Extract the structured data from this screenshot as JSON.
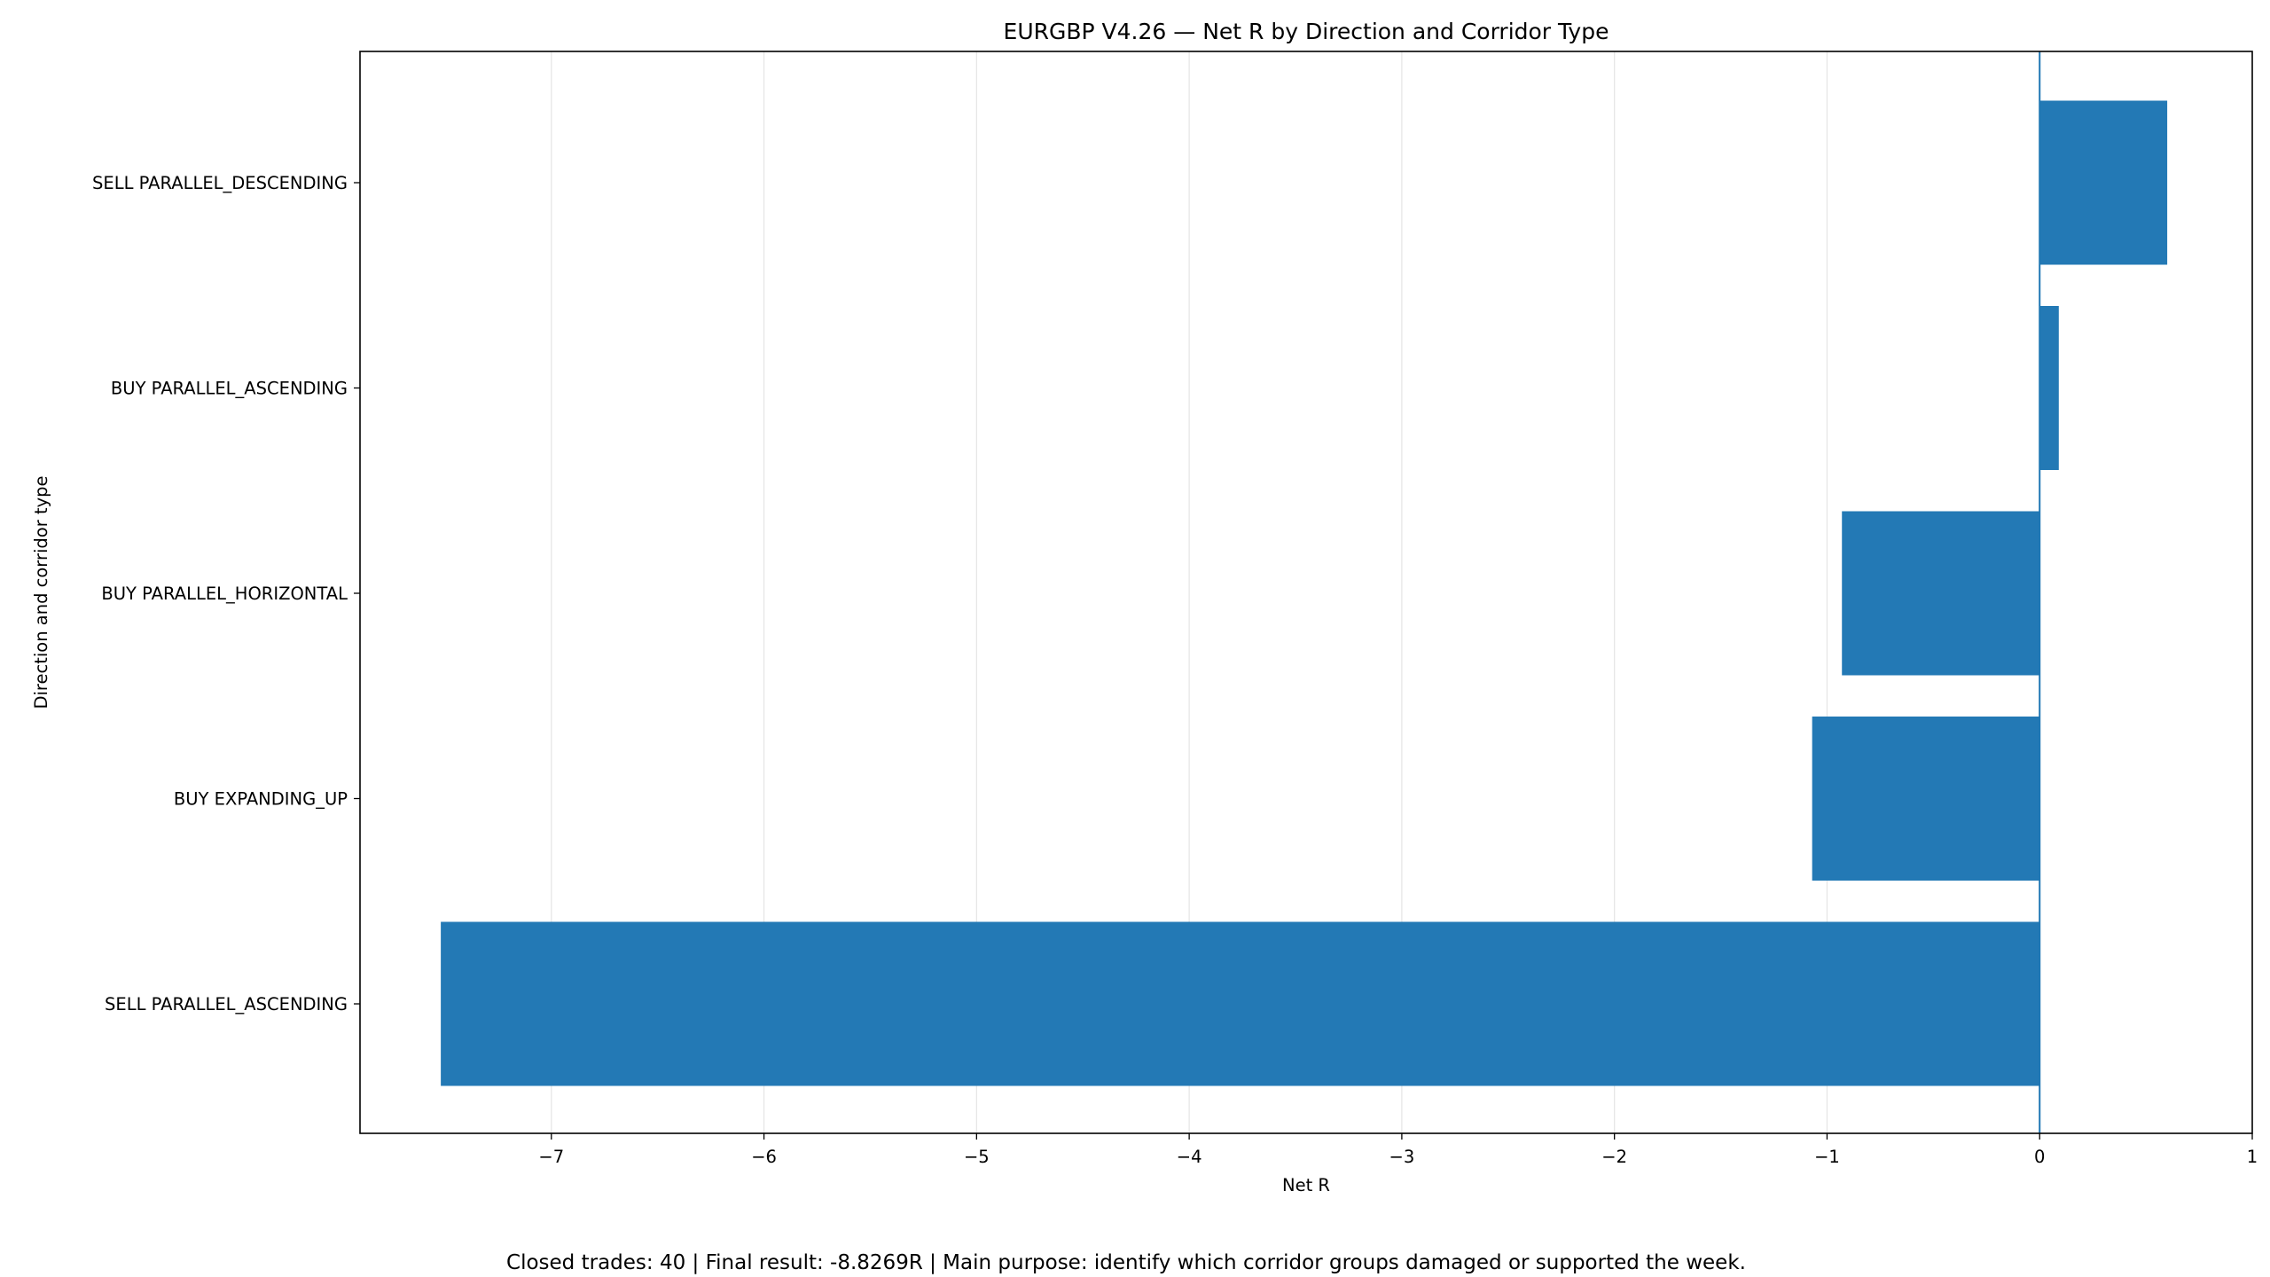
{
  "chart_data": {
    "type": "bar",
    "orientation": "horizontal",
    "title": "EURGBP V4.26 — Net R by Direction and Corridor Type",
    "xlabel": "Net R",
    "ylabel": "Direction and corridor type",
    "categories": [
      "SELL PARALLEL_DESCENDING",
      "BUY PARALLEL_ASCENDING",
      "BUY PARALLEL_HORIZONTAL",
      "BUY EXPANDING_UP",
      "SELL PARALLEL_ASCENDING"
    ],
    "values": [
      0.6,
      0.09,
      -0.93,
      -1.07,
      -7.52
    ],
    "xlim": [
      -7.9,
      1.0
    ],
    "xticks": [
      -7,
      -6,
      -5,
      -4,
      -3,
      -2,
      -1,
      0,
      1
    ],
    "xtick_labels": [
      "−7",
      "−6",
      "−5",
      "−4",
      "−3",
      "−2",
      "−1",
      "0",
      "1"
    ],
    "grid": "x",
    "zero_line": true,
    "bar_color": "#1f77b4",
    "grid_color": "#e6e6e6"
  },
  "footer": "Closed trades: 40 | Final result: -8.8269R | Main purpose: identify which corridor groups damaged or supported the week."
}
